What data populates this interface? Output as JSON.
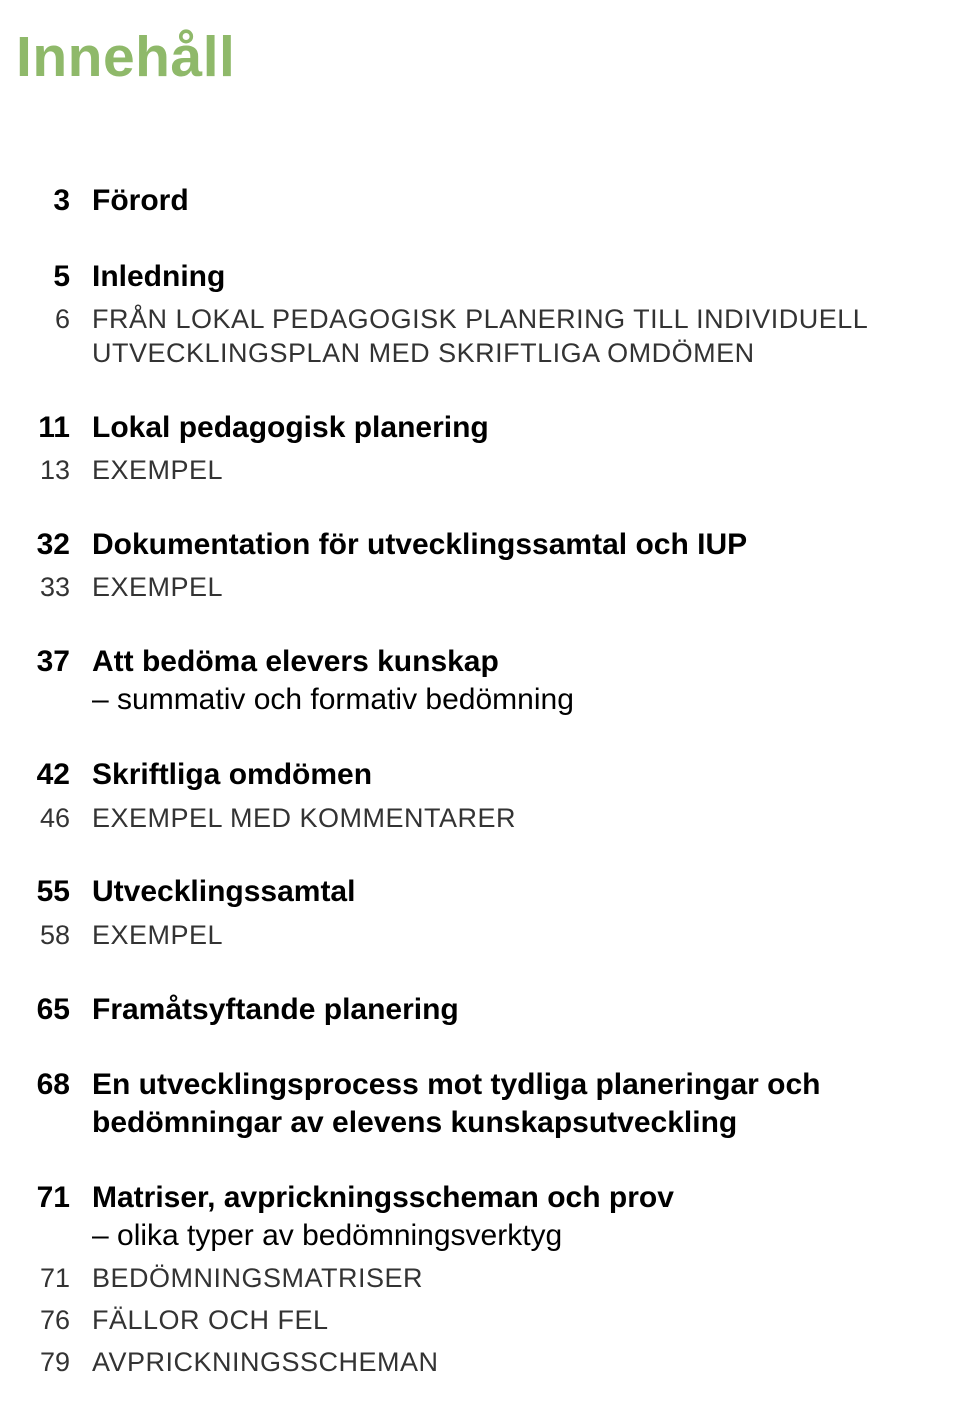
{
  "colors": {
    "title": "#8fb96a",
    "text": "#000000",
    "subtext": "#333333",
    "background": "#ffffff"
  },
  "typography": {
    "title_font": "Helvetica Neue, Arial, sans-serif",
    "title_size_pt": 43,
    "main_size_pt": 23,
    "sub_size_pt": 20
  },
  "title": "Innehåll",
  "toc": [
    {
      "type": "main",
      "page": "3",
      "label": "Förord"
    },
    {
      "type": "gap"
    },
    {
      "type": "main",
      "page": "5",
      "label": "Inledning"
    },
    {
      "type": "sub",
      "page": "6",
      "label": "FRÅN LOKAL PEDAGOGISK PLANERING TILL INDIVIDUELL UTVECKLINGSPLAN MED SKRIFTLIGA OMDÖMEN"
    },
    {
      "type": "gap"
    },
    {
      "type": "main",
      "page": "11",
      "label": "Lokal pedagogisk planering"
    },
    {
      "type": "sub",
      "page": "13",
      "label": "EXEMPEL"
    },
    {
      "type": "gap"
    },
    {
      "type": "main",
      "page": "32",
      "label": "Dokumentation för utvecklingssamtal och IUP"
    },
    {
      "type": "sub",
      "page": "33",
      "label": "EXEMPEL"
    },
    {
      "type": "gap"
    },
    {
      "type": "main",
      "page": "37",
      "label": "Att bedöma elevers kunskap",
      "subline": "– summativ och formativ bedömning"
    },
    {
      "type": "gap"
    },
    {
      "type": "main",
      "page": "42",
      "label": "Skriftliga omdömen"
    },
    {
      "type": "sub",
      "page": "46",
      "label": "EXEMPEL MED KOMMENTARER"
    },
    {
      "type": "gap"
    },
    {
      "type": "main",
      "page": "55",
      "label": "Utvecklingssamtal"
    },
    {
      "type": "sub",
      "page": "58",
      "label": "EXEMPEL"
    },
    {
      "type": "gap"
    },
    {
      "type": "main",
      "page": "65",
      "label": "Framåtsyftande planering"
    },
    {
      "type": "gap"
    },
    {
      "type": "main",
      "page": "68",
      "label": "En utvecklingsprocess mot tydliga planeringar och bedömningar av elevens kunskapsutveckling"
    },
    {
      "type": "gap"
    },
    {
      "type": "main",
      "page": "71",
      "label": "Matriser, avprickningsscheman och prov",
      "subline": "– olika typer av bedömningsverktyg"
    },
    {
      "type": "sub",
      "page": "71",
      "label": "BEDÖMNINGSMATRISER"
    },
    {
      "type": "sub",
      "page": "76",
      "label": "FÄLLOR OCH FEL"
    },
    {
      "type": "sub",
      "page": "79",
      "label": "AVPRICKNINGSSCHEMAN"
    }
  ]
}
